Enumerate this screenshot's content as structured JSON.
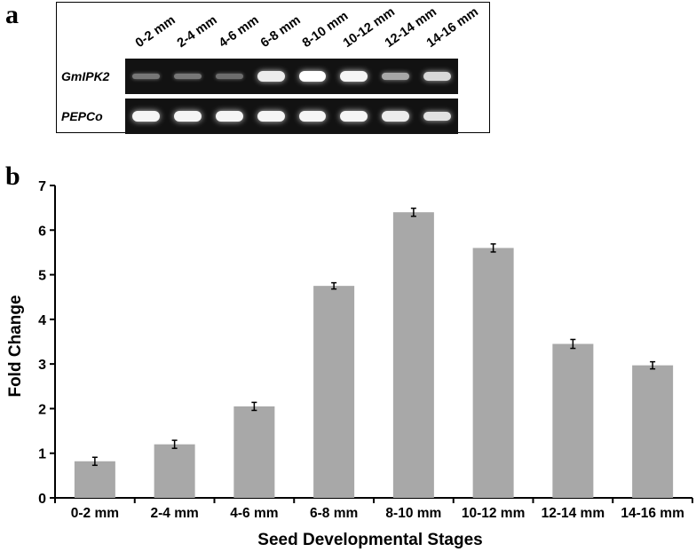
{
  "panel_a": {
    "letter": "a",
    "lanes": [
      "0-2 mm",
      "2-4 mm",
      "4-6 mm",
      "6-8 mm",
      "8-10 mm",
      "10-12 mm",
      "12-14 mm",
      "14-16 mm"
    ],
    "rows": [
      {
        "label": "GmIPK2",
        "intensities": [
          0.3,
          0.3,
          0.25,
          0.9,
          1.0,
          0.95,
          0.55,
          0.8
        ]
      },
      {
        "label": "PEPCo",
        "intensities": [
          0.95,
          0.95,
          0.95,
          0.95,
          0.95,
          0.95,
          0.9,
          0.85
        ]
      }
    ]
  },
  "panel_b": {
    "letter": "b"
  },
  "chart_data": {
    "type": "bar",
    "categories": [
      "0-2 mm",
      "2-4 mm",
      "4-6 mm",
      "6-8 mm",
      "8-10 mm",
      "10-12 mm",
      "12-14 mm",
      "14-16 mm"
    ],
    "values": [
      0.82,
      1.2,
      2.05,
      4.75,
      6.4,
      5.6,
      3.45,
      2.97
    ],
    "errors": [
      0.09,
      0.09,
      0.09,
      0.07,
      0.09,
      0.09,
      0.1,
      0.08
    ],
    "xlabel": "Seed Developmental Stages",
    "ylabel": "Fold  Change",
    "ylim": [
      0,
      7
    ],
    "yticks": [
      "0",
      "1",
      "2",
      "3",
      "4",
      "5",
      "6",
      "7"
    ],
    "grid": false,
    "bar_color": "#a8a8a8"
  }
}
